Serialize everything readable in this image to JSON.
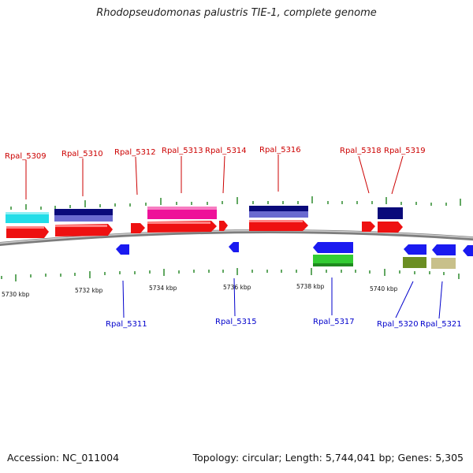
{
  "title": "Rhodopseudomonas palustris TIE-1, complete genome",
  "footer": {
    "accession": "Accession: NC_011004",
    "topology": "Topology: circular; Length: 5,744,041 bp; Genes: 5,305"
  },
  "colors": {
    "backbone": "#8a8a8a",
    "tick": "#2e8b2e",
    "top_label": "#cc0000",
    "bottom_label": "#0000cc",
    "red_gene": "#ee1111",
    "blue_gene": "#1a1af0",
    "navy_gene": "#0a0a7a",
    "magenta_gene": "#ee1199",
    "cyan_gene": "#22dde8",
    "green_gene": "#33cc33",
    "olive_gene": "#6b8e23",
    "khaki_gene": "#c8c08a"
  },
  "axis": {
    "unit": "kbp",
    "labels": [
      "5730 kbp",
      "5732 kbp",
      "5734 kbp",
      "5736 kbp",
      "5738 kbp",
      "5740 kbp"
    ]
  },
  "genes_top": [
    {
      "name": "Rpal_5309"
    },
    {
      "name": "Rpal_5310"
    },
    {
      "name": "Rpal_5312"
    },
    {
      "name": "Rpal_5313"
    },
    {
      "name": "Rpal_5314"
    },
    {
      "name": "Rpal_5316"
    },
    {
      "name": "Rpal_5318"
    },
    {
      "name": "Rpal_5319"
    }
  ],
  "genes_bottom": [
    {
      "name": "Rpal_5311"
    },
    {
      "name": "Rpal_5315"
    },
    {
      "name": "Rpal_5317"
    },
    {
      "name": "Rpal_5320"
    },
    {
      "name": "Rpal_5321"
    }
  ]
}
